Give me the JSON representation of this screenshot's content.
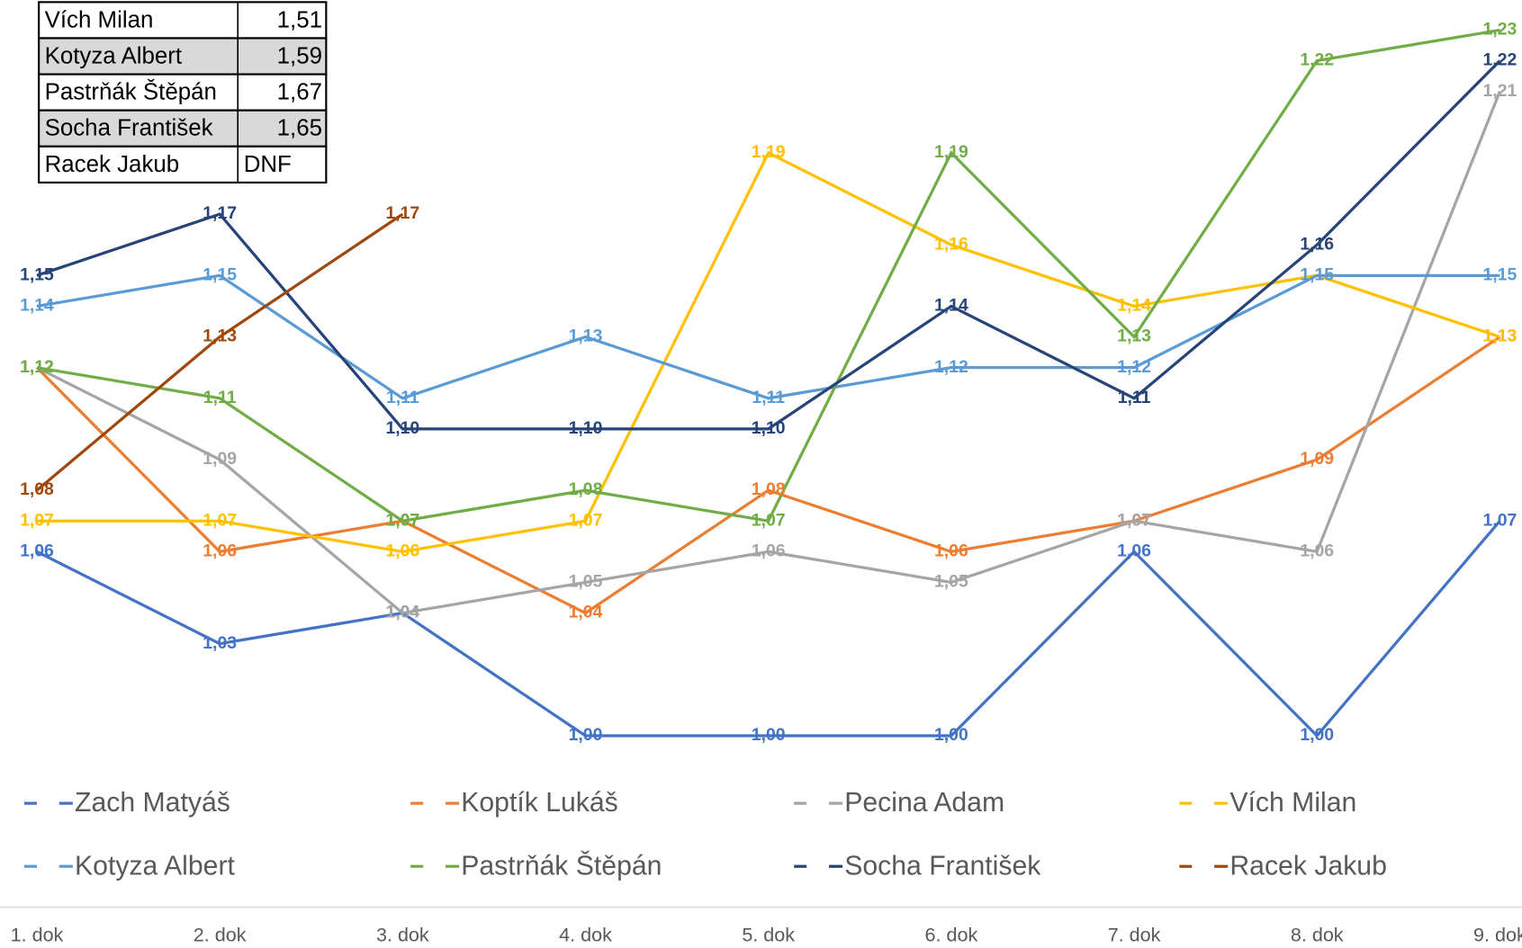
{
  "table": {
    "rows": [
      [
        "Vích Milan",
        "1,51"
      ],
      [
        "Kotyza Albert",
        "1,59"
      ],
      [
        "Pastrňák Štěpán",
        "1,67"
      ],
      [
        "Socha František",
        "1,65"
      ],
      [
        "Racek Jakub",
        "DNF"
      ]
    ]
  },
  "chart_data": {
    "type": "line",
    "categories": [
      "1. dok",
      "2. dok",
      "3. dok",
      "4. dok",
      "5. dok",
      "6. dok",
      "7. dok",
      "8. dok",
      "9. dok"
    ],
    "ylim": [
      0.99,
      1.235
    ],
    "series": [
      {
        "name": "Zach Matyáš",
        "color": "#4472c4",
        "values": [
          1.06,
          1.03,
          1.04,
          1.0,
          1.0,
          1.0,
          1.06,
          1.0,
          1.07
        ],
        "value_labels": [
          "1,06",
          "1,03",
          "1,04",
          "1,00",
          "1,00",
          "1,00",
          "1,06",
          "1,00",
          "1,07"
        ]
      },
      {
        "name": "Koptík Lukáš",
        "color": "#ed7d31",
        "values": [
          1.12,
          1.06,
          1.07,
          1.04,
          1.08,
          1.06,
          1.07,
          1.09,
          1.13
        ],
        "value_labels": [
          "1,12",
          "1,06",
          "1,07",
          "1,04",
          "1,08",
          "1,06",
          "1,07",
          "1,09",
          "1,13"
        ]
      },
      {
        "name": "Pecina Adam",
        "color": "#a5a5a5",
        "values": [
          1.12,
          1.09,
          1.04,
          1.05,
          1.06,
          1.05,
          1.07,
          1.06,
          1.21
        ],
        "value_labels": [
          "1,12",
          "1,09",
          "1,04",
          "1,05",
          "1,06",
          "1,05",
          "1,07",
          "1,06",
          "1,21"
        ]
      },
      {
        "name": "Vích Milan",
        "color": "#ffc000",
        "values": [
          1.07,
          1.07,
          1.06,
          1.07,
          1.19,
          1.16,
          1.14,
          1.15,
          1.13
        ],
        "value_labels": [
          "1,07",
          "1,07",
          "1,06",
          "1,07",
          "1,19",
          "1,16",
          "1,14",
          "1,15",
          "1,13"
        ]
      },
      {
        "name": "Kotyza Albert",
        "color": "#5b9bd5",
        "values": [
          1.14,
          1.15,
          1.11,
          1.13,
          1.11,
          1.12,
          1.12,
          1.15,
          1.15
        ],
        "value_labels": [
          "1,14",
          "1,15",
          "1,11",
          "1,13",
          "1,11",
          "1,12",
          "1,12",
          "1,15",
          "1,15"
        ]
      },
      {
        "name": "Pastrňák Štěpán",
        "color": "#70ad47",
        "values": [
          1.12,
          1.11,
          1.07,
          1.08,
          1.07,
          1.19,
          1.13,
          1.22,
          1.23
        ],
        "value_labels": [
          "1,12",
          "1,11",
          "1,07",
          "1,08",
          "1,07",
          "1,19",
          "1,13",
          "1,22",
          "1,23"
        ]
      },
      {
        "name": "Socha František",
        "color": "#264478",
        "values": [
          1.15,
          1.17,
          1.1,
          1.1,
          1.1,
          1.14,
          1.11,
          1.16,
          1.22
        ],
        "value_labels": [
          "1,15",
          "1,17",
          "1,10",
          "1,10",
          "1,10",
          "1,14",
          "1,11",
          "1,16",
          "1,22"
        ]
      },
      {
        "name": "Racek Jakub",
        "color": "#9e480e",
        "values": [
          1.08,
          1.13,
          1.17,
          null,
          null,
          null,
          null,
          null,
          null
        ],
        "value_labels": [
          "1,08",
          "1,13",
          "1,17",
          null,
          null,
          null,
          null,
          null,
          null
        ]
      }
    ]
  }
}
